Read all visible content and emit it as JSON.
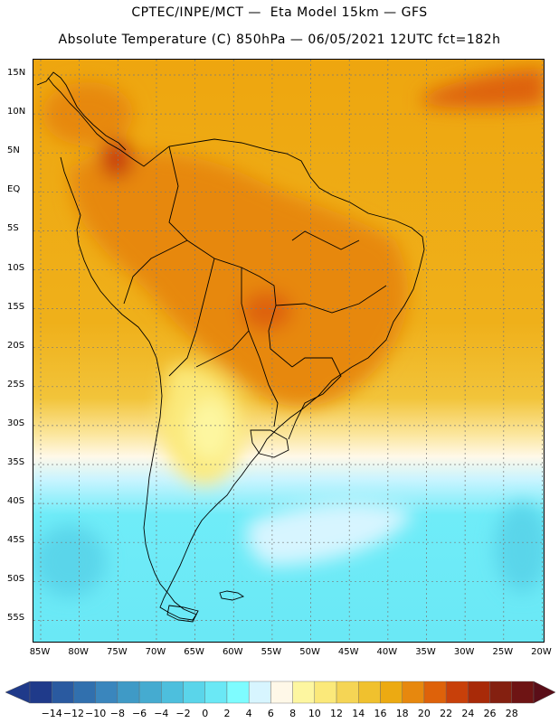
{
  "header": {
    "line1": "CPTEC/INPE/MCT —  Eta Model 15km — GFS",
    "line2": "Absolute Temperature (C) 850hPa — 06/05/2021 12UTC fct=182h"
  },
  "map": {
    "lat_labels": [
      "15N",
      "10N",
      "5N",
      "EQ",
      "5S",
      "10S",
      "15S",
      "20S",
      "25S",
      "30S",
      "35S",
      "40S",
      "45S",
      "50S",
      "55S"
    ],
    "lon_labels": [
      "85W",
      "80W",
      "75W",
      "70W",
      "65W",
      "60W",
      "55W",
      "50W",
      "45W",
      "40W",
      "35W",
      "30W",
      "25W",
      "20W"
    ],
    "region": "South America"
  },
  "colorbar": {
    "labels": [
      "-14",
      "-12",
      "-10",
      "-8",
      "-6",
      "-4",
      "-2",
      "0",
      "2",
      "4",
      "6",
      "8",
      "10",
      "12",
      "14",
      "16",
      "18",
      "20",
      "22",
      "24",
      "26",
      "28"
    ],
    "colors": [
      "#1f3a8a",
      "#2a5aa0",
      "#3170ae",
      "#3a86bd",
      "#3f9ac6",
      "#45abd0",
      "#4dbfdd",
      "#5ad5ea",
      "#6ae8f5",
      "#7efcff",
      "#d7f5ff",
      "#fff8e8",
      "#fdf6a0",
      "#fbe97a",
      "#f5d555",
      "#f0c12e",
      "#ecaa12",
      "#e7880e",
      "#de620a",
      "#c8400a",
      "#a82a08",
      "#842010",
      "#6e1414"
    ]
  }
}
